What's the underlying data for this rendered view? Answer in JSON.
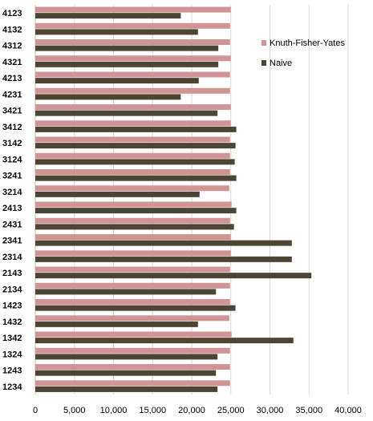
{
  "chart_data": {
    "type": "bar",
    "orientation": "horizontal",
    "categories": [
      "4123",
      "4132",
      "4312",
      "4321",
      "4213",
      "4231",
      "3421",
      "3412",
      "3142",
      "3124",
      "3241",
      "3214",
      "2413",
      "2431",
      "2341",
      "2314",
      "2143",
      "2134",
      "1423",
      "1432",
      "1342",
      "1324",
      "1243",
      "1234"
    ],
    "series": [
      {
        "name": "Knuth-Fisher-Yates",
        "color": "#d09494",
        "values": [
          25000,
          24900,
          24900,
          25000,
          24900,
          24900,
          25000,
          25000,
          24900,
          24900,
          24900,
          24800,
          25100,
          24900,
          25000,
          25000,
          24900,
          24900,
          24900,
          24800,
          25100,
          24900,
          24900,
          24900
        ]
      },
      {
        "name": "Naive",
        "color": "#4d4533",
        "values": [
          18600,
          20800,
          23400,
          23400,
          20900,
          18600,
          23300,
          25700,
          25600,
          25500,
          25700,
          21000,
          25700,
          25400,
          32800,
          32800,
          35300,
          23100,
          25600,
          20800,
          33000,
          23300,
          23100,
          23300
        ]
      }
    ],
    "xlim": [
      0,
      40000
    ],
    "xticks": [
      "0",
      "5,000",
      "10,000",
      "15,000",
      "20,000",
      "25,000",
      "30,000",
      "35,000",
      "40,000"
    ],
    "grid": true,
    "legend_position": "right"
  }
}
